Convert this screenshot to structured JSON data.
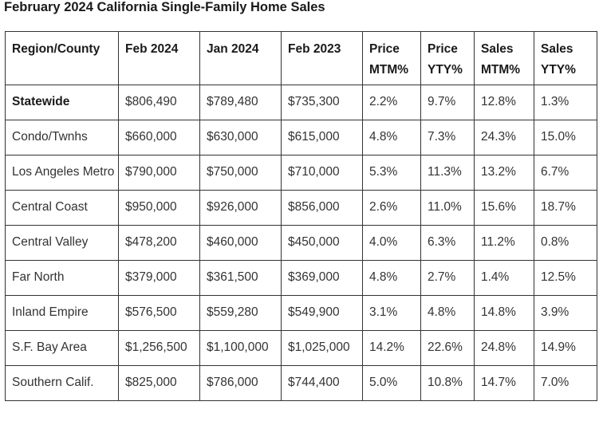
{
  "title": "February 2024 California Single-Family Home Sales",
  "table": {
    "headers": [
      [
        "Region/County"
      ],
      [
        "Feb 2024"
      ],
      [
        "Jan 2024"
      ],
      [
        "Feb 2023"
      ],
      [
        "Price",
        "MTM%"
      ],
      [
        "Price",
        "YTY%"
      ],
      [
        "Sales",
        "MTM%"
      ],
      [
        "Sales",
        "YTY%"
      ]
    ],
    "rows": [
      [
        "Statewide",
        "$806,490",
        "$789,480",
        "$735,300",
        "2.2%",
        "9.7%",
        "12.8%",
        "1.3%"
      ],
      [
        "Condo/Twnhs",
        "$660,000",
        "$630,000",
        "$615,000",
        "4.8%",
        "7.3%",
        "24.3%",
        "15.0%"
      ],
      [
        "Los Angeles Metro",
        "$790,000",
        "$750,000",
        "$710,000",
        "5.3%",
        "11.3%",
        "13.2%",
        "6.7%"
      ],
      [
        "Central Coast",
        "$950,000",
        "$926,000",
        "$856,000",
        "2.6%",
        "11.0%",
        "15.6%",
        "18.7%"
      ],
      [
        "Central Valley",
        "$478,200",
        "$460,000",
        "$450,000",
        "4.0%",
        "6.3%",
        "11.2%",
        "0.8%"
      ],
      [
        "Far North",
        "$379,000",
        "$361,500",
        "$369,000",
        "4.8%",
        "2.7%",
        "1.4%",
        "12.5%"
      ],
      [
        "Inland Empire",
        "$576,500",
        "$559,280",
        "$549,900",
        "3.1%",
        "4.8%",
        "14.8%",
        "3.9%"
      ],
      [
        "S.F. Bay Area",
        "$1,256,500",
        "$1,100,000",
        "$1,025,000",
        "14.2%",
        "22.6%",
        "24.8%",
        "14.9%"
      ],
      [
        "Southern Calif.",
        "$825,000",
        "$786,000",
        "$744,400",
        "5.0%",
        "10.8%",
        "14.7%",
        "7.0%"
      ]
    ]
  }
}
